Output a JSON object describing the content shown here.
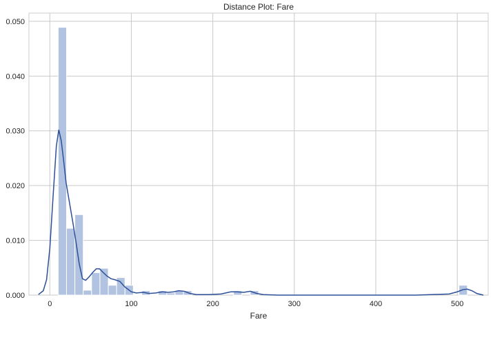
{
  "chart_data": {
    "type": "histogram",
    "title": "Distance Plot: Fare",
    "xlabel": "Fare",
    "ylabel": "",
    "xlim": [
      -25.6,
      537.9
    ],
    "ylim": [
      0,
      0.0515
    ],
    "grid": true,
    "xticks": [
      0,
      100,
      200,
      300,
      400,
      500
    ],
    "yticks": [
      0.0,
      0.01,
      0.02,
      0.03,
      0.04,
      0.05
    ],
    "ytick_labels": [
      "0.000",
      "0.010",
      "0.020",
      "0.030",
      "0.040",
      "0.050"
    ],
    "bar_color": "#b1c3e1",
    "line_color": "#2c4f98",
    "bin_width": 10.25,
    "bins": [
      {
        "x0": 0,
        "value": 0.0
      },
      {
        "x0": 10.25,
        "value": 0.0489
      },
      {
        "x0": 20.49,
        "value": 0.0122
      },
      {
        "x0": 30.74,
        "value": 0.0147
      },
      {
        "x0": 40.99,
        "value": 0.0009
      },
      {
        "x0": 51.23,
        "value": 0.0041
      },
      {
        "x0": 61.48,
        "value": 0.0049
      },
      {
        "x0": 71.73,
        "value": 0.0018
      },
      {
        "x0": 81.97,
        "value": 0.0032
      },
      {
        "x0": 92.22,
        "value": 0.0018
      },
      {
        "x0": 102.47,
        "value": 0.0001
      },
      {
        "x0": 112.71,
        "value": 0.0008
      },
      {
        "x0": 122.96,
        "value": 0.0001
      },
      {
        "x0": 133.21,
        "value": 0.0008
      },
      {
        "x0": 143.45,
        "value": 0.0004
      },
      {
        "x0": 153.7,
        "value": 0.0008
      },
      {
        "x0": 163.95,
        "value": 0.0008
      },
      {
        "x0": 225.43,
        "value": 0.0008
      },
      {
        "x0": 245.92,
        "value": 0.0008
      },
      {
        "x0": 502.08,
        "value": 0.0018
      }
    ],
    "kde": [
      [
        -14,
        0.0001
      ],
      [
        -8,
        0.0008
      ],
      [
        -4,
        0.0028
      ],
      [
        0,
        0.0085
      ],
      [
        4,
        0.018
      ],
      [
        8,
        0.0272
      ],
      [
        11,
        0.0302
      ],
      [
        14,
        0.0282
      ],
      [
        17,
        0.0245
      ],
      [
        20,
        0.0205
      ],
      [
        24,
        0.017
      ],
      [
        28,
        0.0135
      ],
      [
        32,
        0.0098
      ],
      [
        36,
        0.0058
      ],
      [
        40,
        0.003
      ],
      [
        44,
        0.0027
      ],
      [
        48,
        0.0033
      ],
      [
        53,
        0.0042
      ],
      [
        57,
        0.0048
      ],
      [
        61,
        0.0048
      ],
      [
        65,
        0.0042
      ],
      [
        70,
        0.0035
      ],
      [
        75,
        0.003
      ],
      [
        80,
        0.0028
      ],
      [
        86,
        0.0025
      ],
      [
        92,
        0.0015
      ],
      [
        100,
        0.0006
      ],
      [
        106,
        0.0004
      ],
      [
        115,
        0.0005
      ],
      [
        122,
        0.0003
      ],
      [
        130,
        0.0004
      ],
      [
        138,
        0.0006
      ],
      [
        145,
        0.0005
      ],
      [
        152,
        0.0006
      ],
      [
        158,
        0.0008
      ],
      [
        165,
        0.0007
      ],
      [
        172,
        0.0003
      ],
      [
        180,
        0.0001
      ],
      [
        195,
        0.0001
      ],
      [
        210,
        0.0002
      ],
      [
        222,
        0.0006
      ],
      [
        230,
        0.0006
      ],
      [
        238,
        0.0005
      ],
      [
        246,
        0.0007
      ],
      [
        254,
        0.0003
      ],
      [
        262,
        0.0001
      ],
      [
        280,
        0.0
      ],
      [
        350,
        0.0
      ],
      [
        450,
        0.0
      ],
      [
        490,
        0.0002
      ],
      [
        500,
        0.0006
      ],
      [
        507,
        0.001
      ],
      [
        512,
        0.0011
      ],
      [
        518,
        0.0008
      ],
      [
        524,
        0.0003
      ],
      [
        532,
        0.0
      ]
    ]
  }
}
